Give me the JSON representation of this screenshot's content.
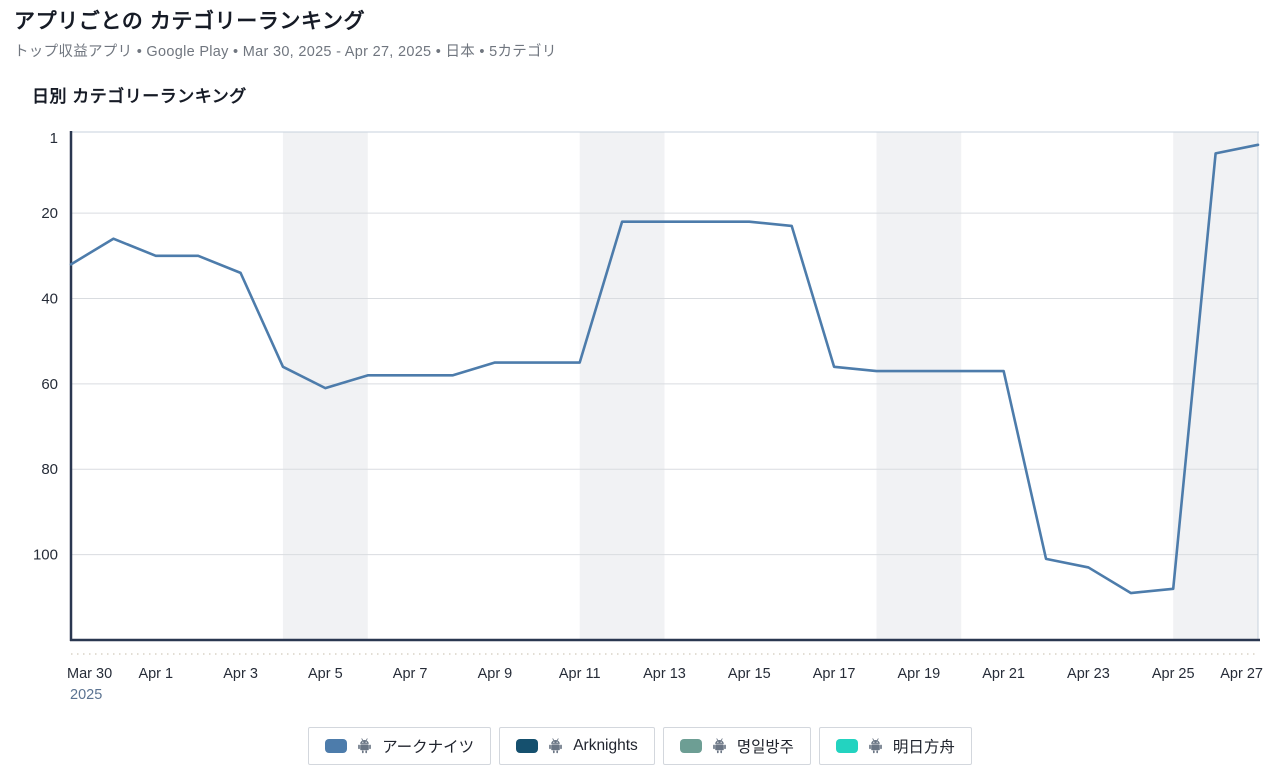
{
  "header": {
    "title": "アプリごとの カテゴリーランキング",
    "meta": {
      "metric": "トップ収益アプリ",
      "store": "Google Play",
      "date_range": "Mar 30, 2025 - Apr 27, 2025",
      "country": "日本",
      "categories": "5カテゴリ",
      "separator": " • "
    }
  },
  "section": {
    "title": "日別 カテゴリーランキング"
  },
  "chart_data": {
    "type": "line",
    "title": "日別 カテゴリーランキング",
    "x": [
      "Mar 30",
      "Mar 31",
      "Apr 1",
      "Apr 2",
      "Apr 3",
      "Apr 4",
      "Apr 5",
      "Apr 6",
      "Apr 7",
      "Apr 8",
      "Apr 9",
      "Apr 10",
      "Apr 11",
      "Apr 12",
      "Apr 13",
      "Apr 14",
      "Apr 15",
      "Apr 16",
      "Apr 17",
      "Apr 18",
      "Apr 19",
      "Apr 20",
      "Apr 21",
      "Apr 22",
      "Apr 23",
      "Apr 24",
      "Apr 25",
      "Apr 26",
      "Apr 27"
    ],
    "x_year": "2025",
    "x_tick_step": 2,
    "y_ticks": [
      1,
      20,
      40,
      60,
      80,
      100
    ],
    "y_range": [
      1,
      120
    ],
    "y_inverted": true,
    "grid": "horizontal",
    "legend_position": "bottom",
    "series": [
      {
        "name": "アークナイツ",
        "platform": "android",
        "color": "#4d7cab",
        "values": [
          32,
          26,
          30,
          30,
          34,
          56,
          61,
          58,
          58,
          58,
          55,
          55,
          55,
          22,
          22,
          22,
          22,
          23,
          56,
          57,
          57,
          57,
          57,
          101,
          103,
          109,
          108,
          6,
          4
        ]
      },
      {
        "name": "Arknights",
        "platform": "android",
        "color": "#15506e",
        "values": []
      },
      {
        "name": "명일방주",
        "platform": "android",
        "color": "#6d9e94",
        "values": []
      },
      {
        "name": "明日方舟",
        "platform": "android",
        "color": "#23d3c0",
        "values": []
      }
    ],
    "weekend_bands": [
      [
        "Apr 4",
        "Apr 6"
      ],
      [
        "Apr 11",
        "Apr 13"
      ],
      [
        "Apr 18",
        "Apr 20"
      ],
      [
        "Apr 25",
        "Apr 27"
      ]
    ]
  },
  "colors": {
    "line_blue": "#4d7cab",
    "weekend_band": "#f1f2f4",
    "gridline": "#d9dce0",
    "axis_dark": "#2a3750",
    "border_light": "#c7d1dd",
    "tick_text": "#262c38",
    "year_text": "#5b7391",
    "minor_tick_dots": "#d9d3c6"
  }
}
